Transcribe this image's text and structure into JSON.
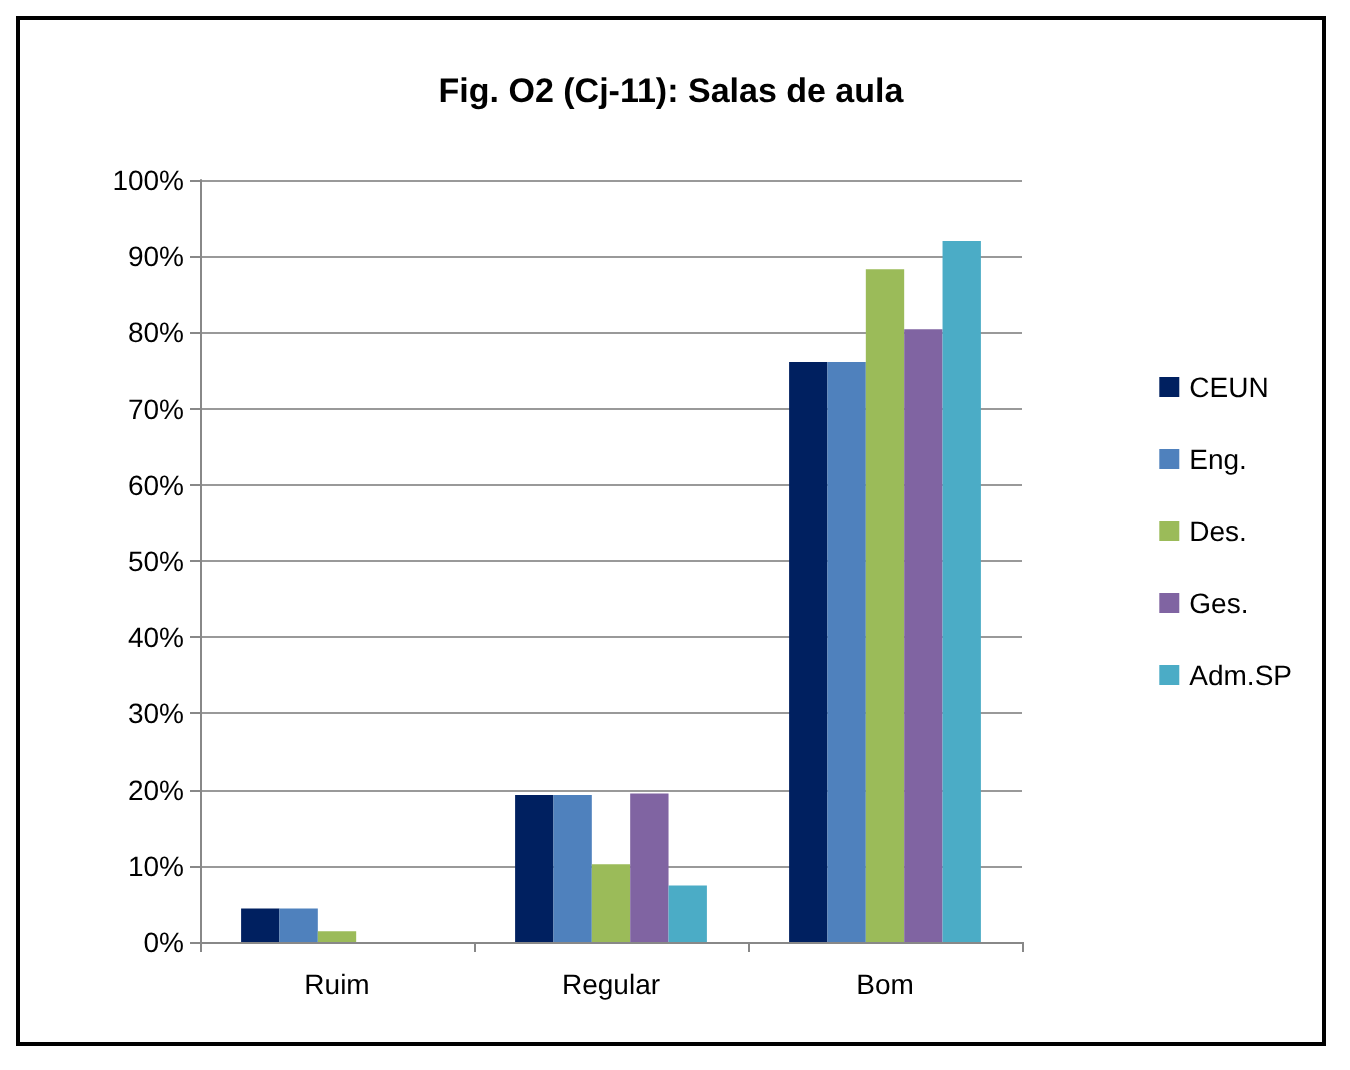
{
  "chart_data": {
    "type": "bar",
    "title": "Fig. O2 (Cj-11): Salas de aula",
    "categories": [
      "Ruim",
      "Regular",
      "Bom"
    ],
    "series": [
      {
        "name": "CEUN",
        "color": "#002060",
        "values": [
          4.4,
          19.3,
          76.1
        ]
      },
      {
        "name": "Eng.",
        "color": "#4f81bd",
        "values": [
          4.4,
          19.3,
          76.1
        ]
      },
      {
        "name": "Des.",
        "color": "#9bbb59",
        "values": [
          1.4,
          10.2,
          88.3
        ]
      },
      {
        "name": "Ges.",
        "color": "#8064a2",
        "values": [
          0,
          19.5,
          80.4
        ]
      },
      {
        "name": "Adm.SP",
        "color": "#4bacc6",
        "values": [
          0,
          7.4,
          92
        ]
      }
    ],
    "ylim": [
      0,
      100
    ],
    "yticks": [
      {
        "value": 0,
        "label": "0%"
      },
      {
        "value": 10,
        "label": "10%"
      },
      {
        "value": 20,
        "label": "20%"
      },
      {
        "value": 30,
        "label": "30%"
      },
      {
        "value": 40,
        "label": "40%"
      },
      {
        "value": 50,
        "label": "50%"
      },
      {
        "value": 60,
        "label": "60%"
      },
      {
        "value": 70,
        "label": "70%"
      },
      {
        "value": 80,
        "label": "80%"
      },
      {
        "value": 90,
        "label": "90%"
      },
      {
        "value": 100,
        "label": "100%"
      }
    ],
    "grid": "y",
    "legend": "right"
  }
}
